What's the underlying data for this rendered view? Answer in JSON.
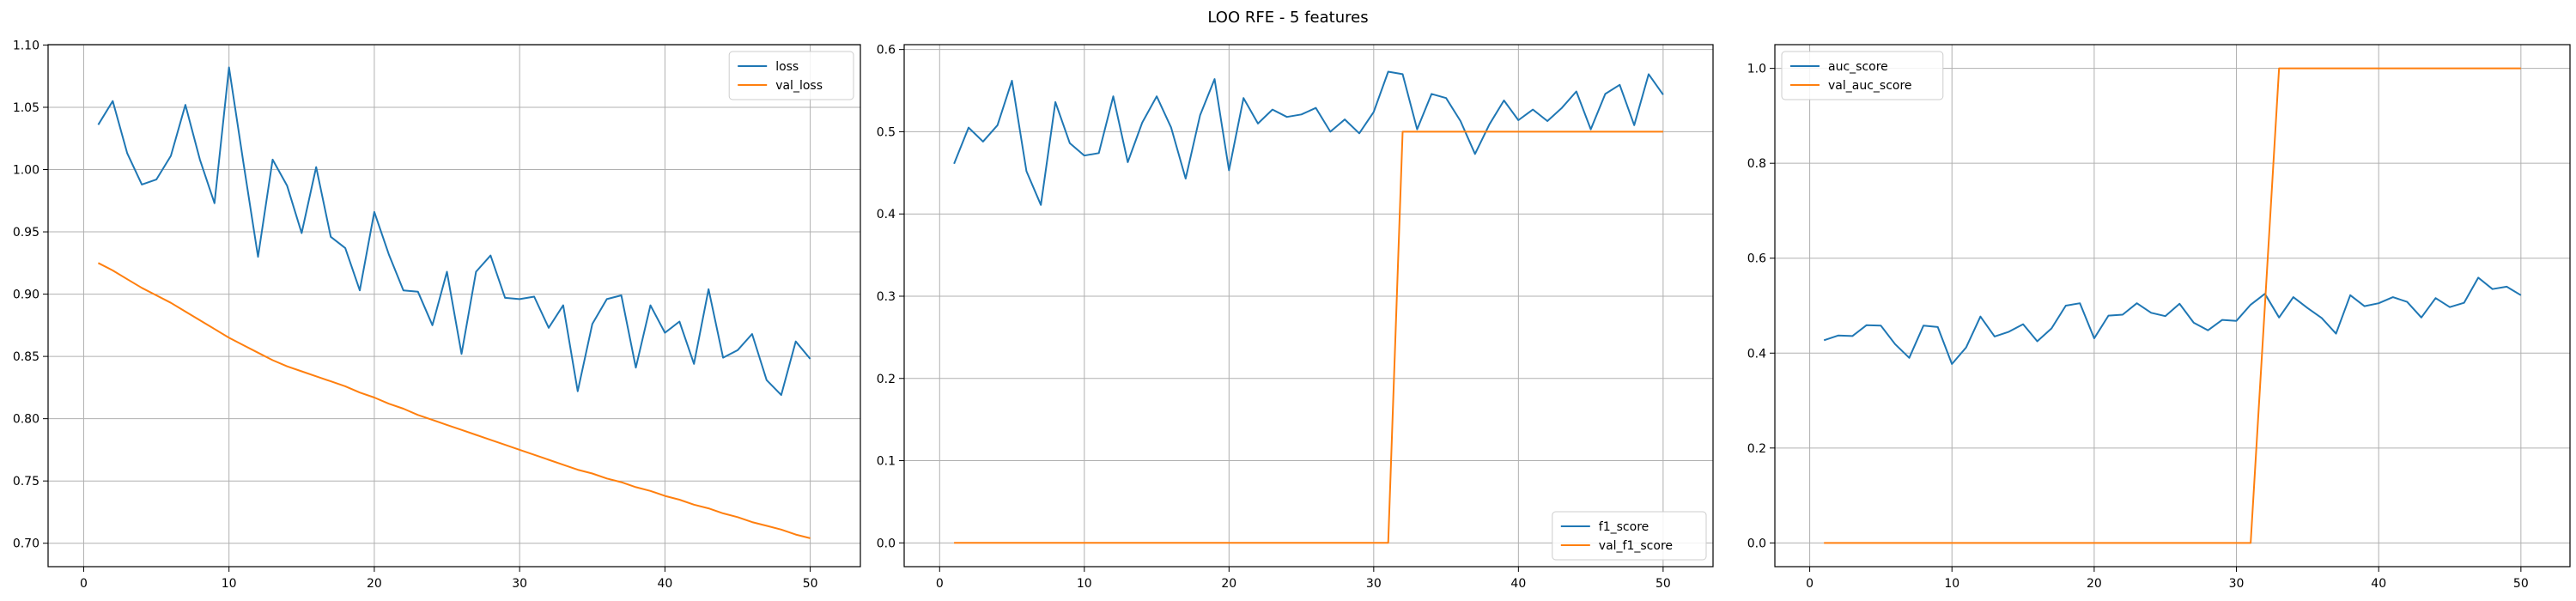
{
  "suptitle": "LOO RFE - 5 features",
  "colors": {
    "blue": "#1f77b4",
    "orange": "#ff7f0e"
  },
  "chart_data": [
    {
      "type": "line",
      "title": "",
      "xlabel": "",
      "ylabel": "",
      "xlim": [
        -2.45,
        53.45
      ],
      "ylim": [
        0.6812,
        1.1003
      ],
      "xticks": [
        0,
        10,
        20,
        30,
        40,
        50
      ],
      "yticks": [
        0.7,
        0.75,
        0.8,
        0.85,
        0.9,
        0.95,
        1.0,
        1.05,
        1.1
      ],
      "ytick_labels": [
        "0.70",
        "0.75",
        "0.80",
        "0.85",
        "0.90",
        "0.95",
        "1.00",
        "1.05",
        "1.10"
      ],
      "grid": true,
      "legend_loc": "upper right",
      "x": [
        1,
        2,
        3,
        4,
        5,
        6,
        7,
        8,
        9,
        10,
        11,
        12,
        13,
        14,
        15,
        16,
        17,
        18,
        19,
        20,
        21,
        22,
        23,
        24,
        25,
        26,
        27,
        28,
        29,
        30,
        31,
        32,
        33,
        34,
        35,
        36,
        37,
        38,
        39,
        40,
        41,
        42,
        43,
        44,
        45,
        46,
        47,
        48,
        49,
        50
      ],
      "series": [
        {
          "name": "loss",
          "color": "#1f77b4",
          "values": [
            1.036,
            1.055,
            1.013,
            0.988,
            0.992,
            1.011,
            1.052,
            1.008,
            0.973,
            1.082,
            1.005,
            0.93,
            1.008,
            0.987,
            0.949,
            1.002,
            0.946,
            0.937,
            0.903,
            0.966,
            0.932,
            0.903,
            0.902,
            0.875,
            0.918,
            0.852,
            0.918,
            0.931,
            0.897,
            0.896,
            0.898,
            0.873,
            0.891,
            0.822,
            0.876,
            0.896,
            0.899,
            0.841,
            0.891,
            0.869,
            0.878,
            0.844,
            0.904,
            0.849,
            0.855,
            0.868,
            0.831,
            0.819,
            0.862,
            0.848
          ]
        },
        {
          "name": "val_loss",
          "color": "#ff7f0e",
          "values": [
            0.925,
            0.919,
            0.912,
            0.905,
            0.899,
            0.893,
            0.886,
            0.879,
            0.872,
            0.865,
            0.859,
            0.853,
            0.847,
            0.842,
            0.838,
            0.834,
            0.83,
            0.826,
            0.821,
            0.817,
            0.812,
            0.808,
            0.803,
            0.799,
            0.795,
            0.791,
            0.787,
            0.783,
            0.779,
            0.775,
            0.771,
            0.767,
            0.763,
            0.759,
            0.756,
            0.752,
            0.749,
            0.745,
            0.742,
            0.738,
            0.735,
            0.731,
            0.728,
            0.724,
            0.721,
            0.717,
            0.714,
            0.711,
            0.707,
            0.704
          ]
        }
      ]
    },
    {
      "type": "line",
      "title": "",
      "xlabel": "",
      "ylabel": "",
      "xlim": [
        -2.45,
        53.45
      ],
      "ylim": [
        -0.0289,
        0.6059
      ],
      "xticks": [
        0,
        10,
        20,
        30,
        40,
        50
      ],
      "yticks": [
        0.0,
        0.1,
        0.2,
        0.3,
        0.4,
        0.5,
        0.6
      ],
      "ytick_labels": [
        "0.0",
        "0.1",
        "0.2",
        "0.3",
        "0.4",
        "0.5",
        "0.6"
      ],
      "grid": true,
      "legend_loc": "lower right",
      "x": [
        1,
        2,
        3,
        4,
        5,
        6,
        7,
        8,
        9,
        10,
        11,
        12,
        13,
        14,
        15,
        16,
        17,
        18,
        19,
        20,
        21,
        22,
        23,
        24,
        25,
        26,
        27,
        28,
        29,
        30,
        31,
        32,
        33,
        34,
        35,
        36,
        37,
        38,
        39,
        40,
        41,
        42,
        43,
        44,
        45,
        46,
        47,
        48,
        49,
        50
      ],
      "series": [
        {
          "name": "f1_score",
          "color": "#1f77b4",
          "values": [
            0.461,
            0.505,
            0.488,
            0.508,
            0.562,
            0.452,
            0.411,
            0.536,
            0.486,
            0.471,
            0.474,
            0.543,
            0.463,
            0.511,
            0.543,
            0.505,
            0.443,
            0.52,
            0.564,
            0.453,
            0.541,
            0.51,
            0.527,
            0.518,
            0.521,
            0.529,
            0.5,
            0.515,
            0.498,
            0.524,
            0.573,
            0.57,
            0.503,
            0.546,
            0.541,
            0.513,
            0.473,
            0.509,
            0.538,
            0.514,
            0.527,
            0.513,
            0.529,
            0.549,
            0.503,
            0.546,
            0.557,
            0.508,
            0.57,
            0.545
          ]
        },
        {
          "name": "val_f1_score",
          "color": "#ff7f0e",
          "values": [
            0,
            0,
            0,
            0,
            0,
            0,
            0,
            0,
            0,
            0,
            0,
            0,
            0,
            0,
            0,
            0,
            0,
            0,
            0,
            0,
            0,
            0,
            0,
            0,
            0,
            0,
            0,
            0,
            0,
            0,
            0,
            0.5,
            0.5,
            0.5,
            0.5,
            0.5,
            0.5,
            0.5,
            0.5,
            0.5,
            0.5,
            0.5,
            0.5,
            0.5,
            0.5,
            0.5,
            0.5,
            0.5,
            0.5,
            0.5
          ]
        }
      ]
    },
    {
      "type": "line",
      "title": "",
      "xlabel": "",
      "ylabel": "",
      "xlim": [
        -2.45,
        53.45
      ],
      "ylim": [
        -0.05,
        1.05
      ],
      "xticks": [
        0,
        10,
        20,
        30,
        40,
        50
      ],
      "yticks": [
        0.0,
        0.2,
        0.4,
        0.6,
        0.8,
        1.0
      ],
      "ytick_labels": [
        "0.0",
        "0.2",
        "0.4",
        "0.6",
        "0.8",
        "1.0"
      ],
      "grid": true,
      "legend_loc": "upper left",
      "x": [
        1,
        2,
        3,
        4,
        5,
        6,
        7,
        8,
        9,
        10,
        11,
        12,
        13,
        14,
        15,
        16,
        17,
        18,
        19,
        20,
        21,
        22,
        23,
        24,
        25,
        26,
        27,
        28,
        29,
        30,
        31,
        32,
        33,
        34,
        35,
        36,
        37,
        38,
        39,
        40,
        41,
        42,
        43,
        44,
        45,
        46,
        47,
        48,
        49,
        50
      ],
      "series": [
        {
          "name": "auc_score",
          "color": "#1f77b4",
          "values": [
            0.427,
            0.437,
            0.436,
            0.459,
            0.458,
            0.419,
            0.39,
            0.458,
            0.455,
            0.377,
            0.412,
            0.477,
            0.435,
            0.445,
            0.461,
            0.425,
            0.452,
            0.5,
            0.505,
            0.431,
            0.479,
            0.481,
            0.505,
            0.485,
            0.478,
            0.504,
            0.464,
            0.448,
            0.47,
            0.468,
            0.502,
            0.525,
            0.475,
            0.518,
            0.495,
            0.474,
            0.441,
            0.522,
            0.499,
            0.505,
            0.518,
            0.508,
            0.475,
            0.516,
            0.497,
            0.506,
            0.559,
            0.535,
            0.54,
            0.522
          ]
        },
        {
          "name": "val_auc_score",
          "color": "#ff7f0e",
          "values": [
            0,
            0,
            0,
            0,
            0,
            0,
            0,
            0,
            0,
            0,
            0,
            0,
            0,
            0,
            0,
            0,
            0,
            0,
            0,
            0,
            0,
            0,
            0,
            0,
            0,
            0,
            0,
            0,
            0,
            0,
            0,
            0.5,
            1,
            1,
            1,
            1,
            1,
            1,
            1,
            1,
            1,
            1,
            1,
            1,
            1,
            1,
            1,
            1,
            1,
            1
          ]
        }
      ]
    }
  ]
}
